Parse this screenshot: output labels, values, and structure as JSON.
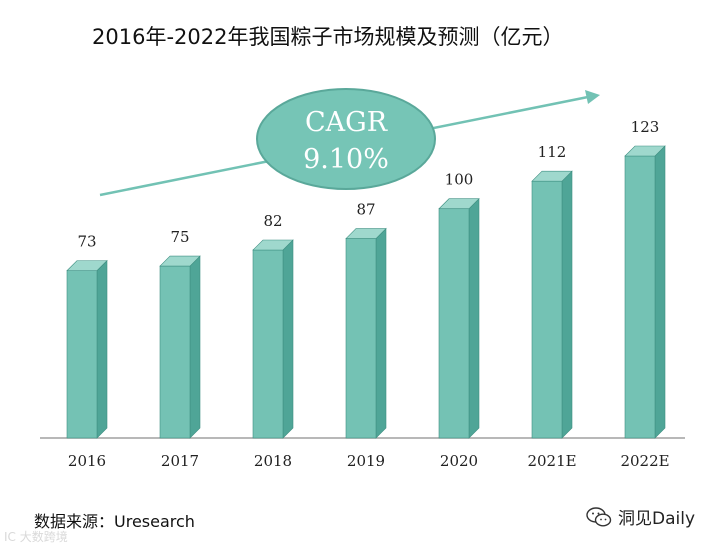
{
  "chart_data": {
    "type": "bar",
    "title": "2016年-2022年我国粽子市场规模及预测（亿元）",
    "categories": [
      "2016",
      "2017",
      "2018",
      "2019",
      "2020",
      "2021E",
      "2022E"
    ],
    "values": [
      73,
      75,
      82,
      87,
      100,
      112,
      123
    ],
    "ylim": [
      0,
      123
    ],
    "xlabel": "",
    "ylabel": "",
    "grid": false,
    "annotation": {
      "line1": "CAGR",
      "line2": "9.10%"
    },
    "colors": {
      "bar_front": "#74c2b4",
      "bar_side": "#4fa597",
      "bar_top": "#9fd8cd",
      "bar_edge": "#3f8f82",
      "ellipse_fill": "#76c5b6",
      "ellipse_stroke": "#5aa89a",
      "arrow": "#72c2b4",
      "axis": "#a0a0a0"
    }
  },
  "footer": {
    "source": "数据来源：Uresearch",
    "watermark": "IC 大数跨境",
    "brand": "洞见Daily",
    "brand_icon": "wechat-icon"
  }
}
